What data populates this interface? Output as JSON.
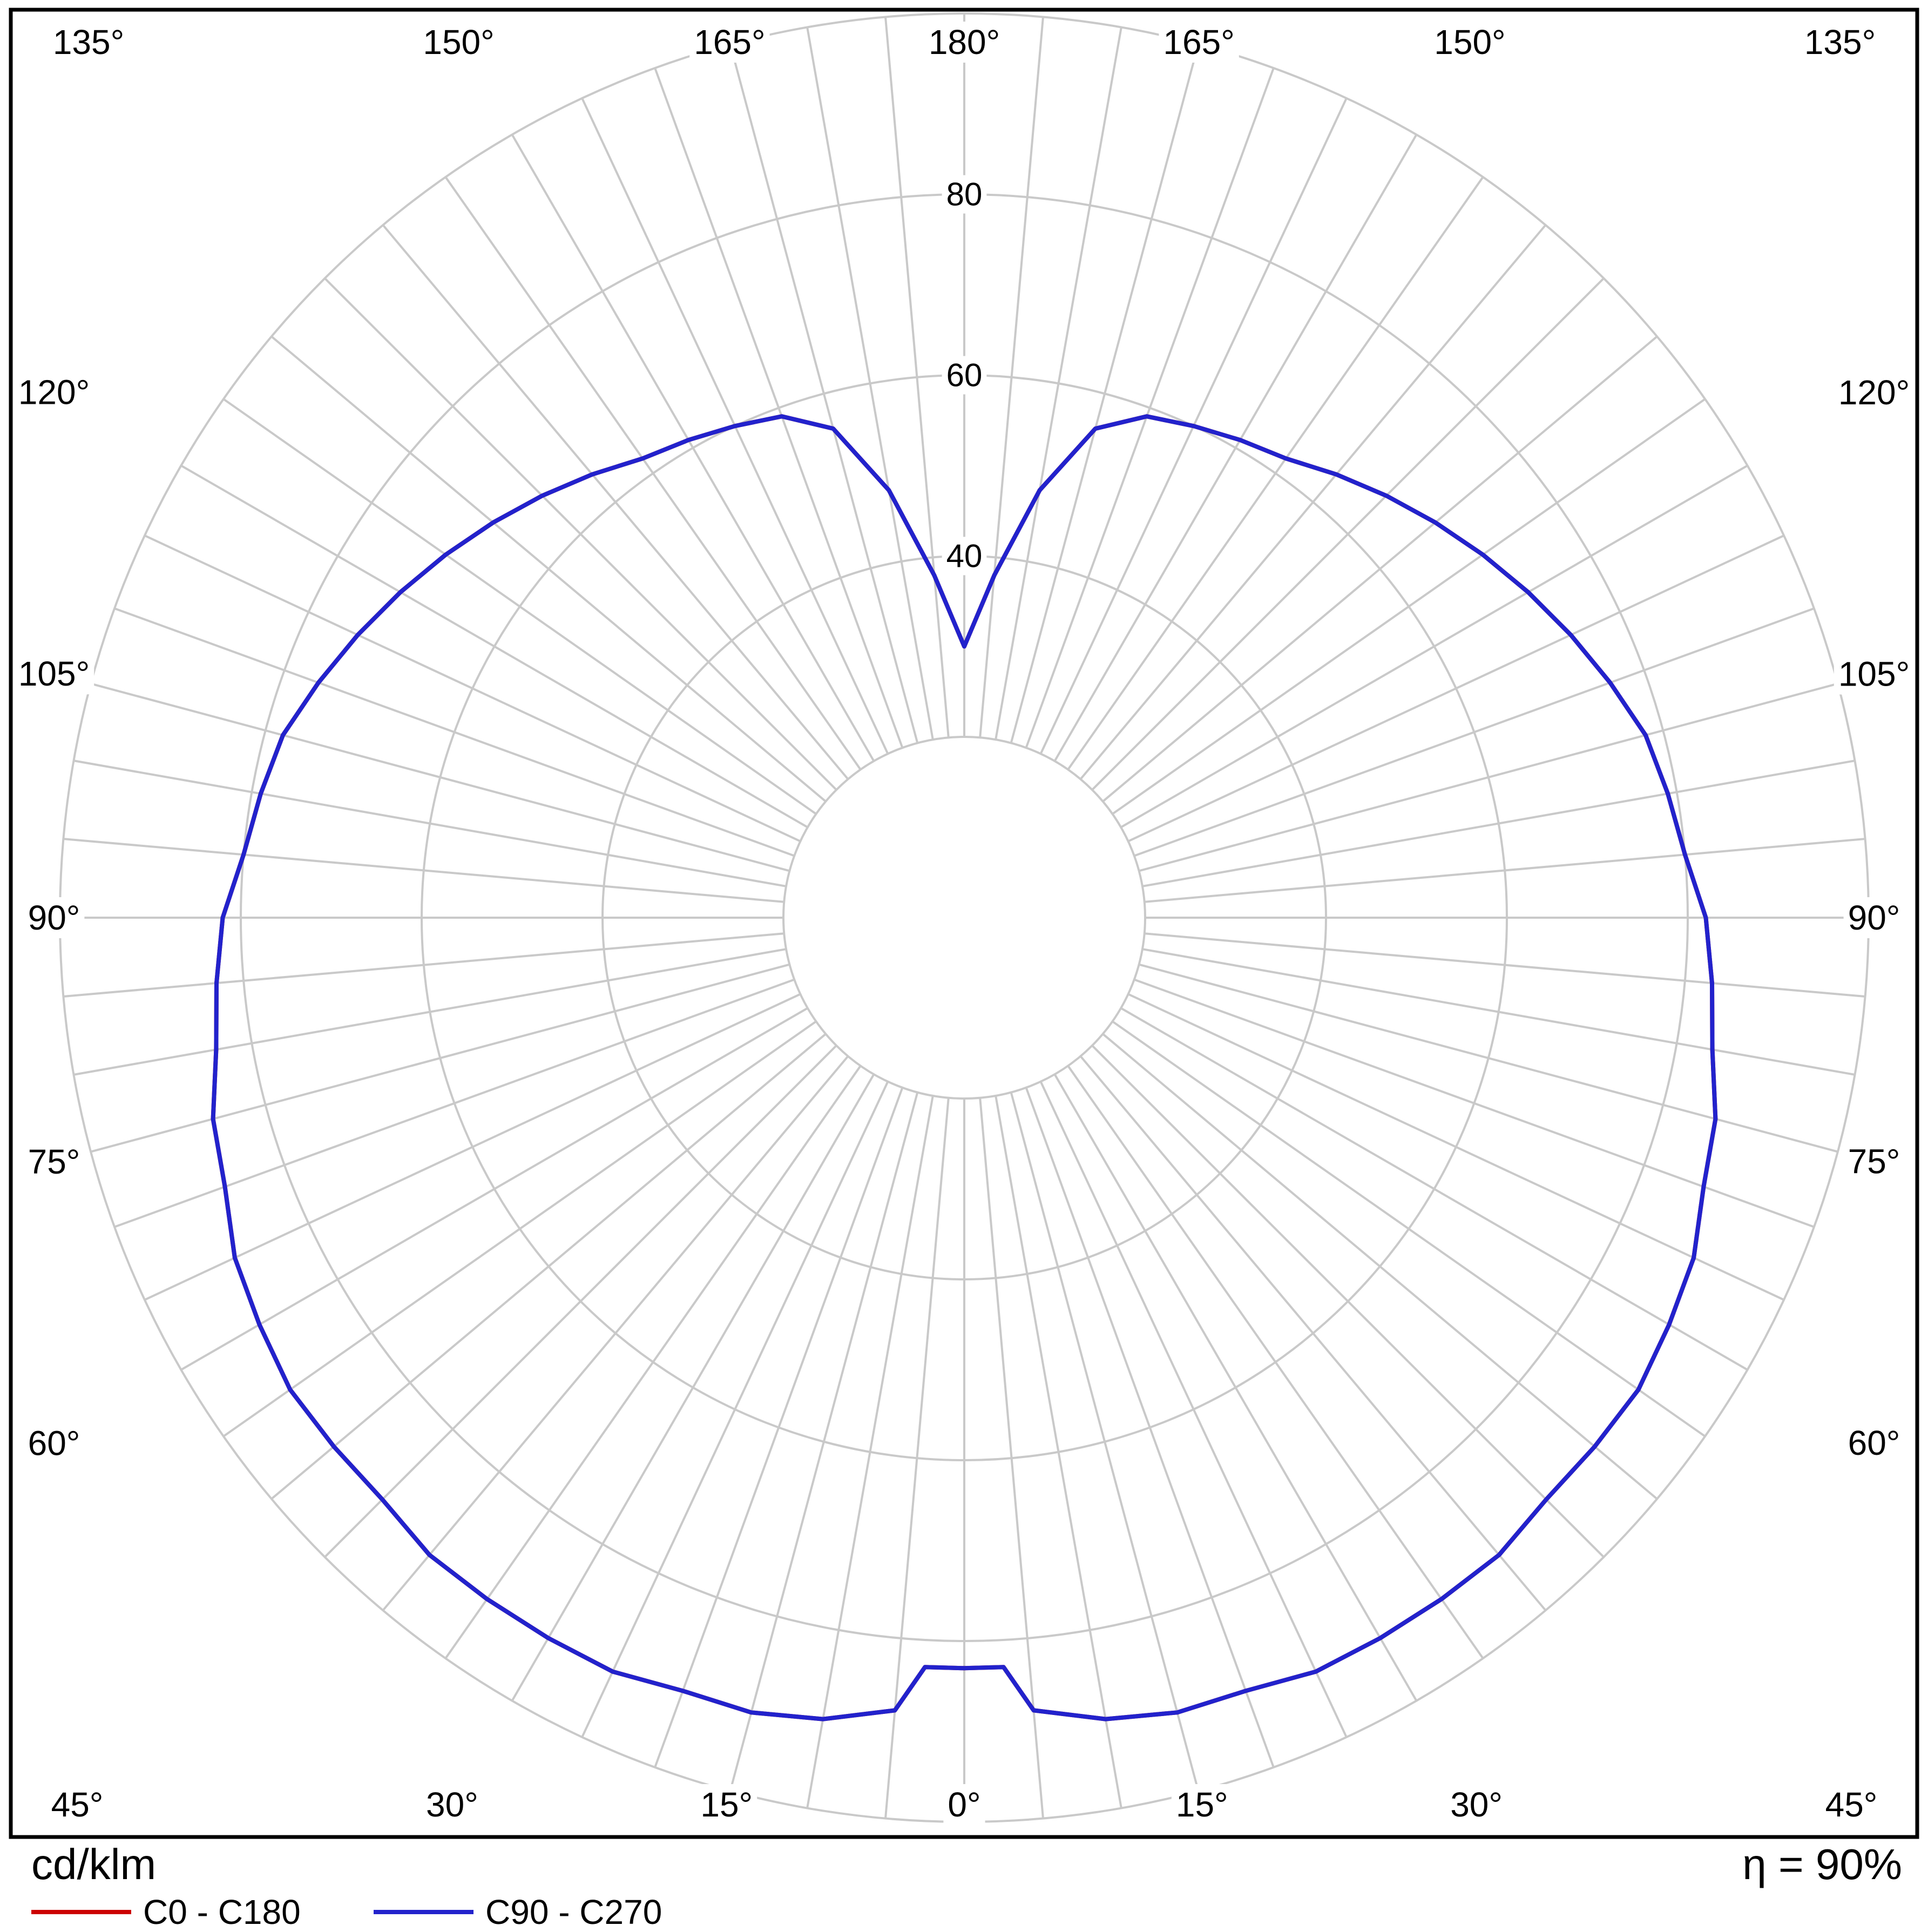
{
  "figure": {
    "unit_label": "cd/klm",
    "efficiency_label": "η = 90%",
    "legend": [
      {
        "label": "C0 - C180",
        "color": "#cc0000"
      },
      {
        "label": "C90 - C270",
        "color": "#2222cc"
      }
    ]
  },
  "chart_data": {
    "type": "line",
    "coordinate_system": "polar",
    "description": "Luminous intensity distribution curve of a luminaire, gamma angle 0° at bottom (nadir) to 180° at top, values in cd/klm, mirrored left/right",
    "radial_unit": "cd/klm",
    "efficiency": "η = 90%",
    "radial_axis": {
      "min": 0,
      "max": 100,
      "grid_step": 20,
      "tick_labels": [
        {
          "value": 40,
          "label": "40"
        },
        {
          "value": 60,
          "label": "60"
        },
        {
          "value": 80,
          "label": "80"
        }
      ]
    },
    "angle_axis": {
      "zero_position": "bottom",
      "major_step_deg": 15,
      "minor_grid_step_deg": 5,
      "labels": [
        {
          "deg": 0,
          "label": "0°"
        },
        {
          "deg": 15,
          "label": "15°"
        },
        {
          "deg": 30,
          "label": "30°"
        },
        {
          "deg": 45,
          "label": "45°"
        },
        {
          "deg": 60,
          "label": "60°"
        },
        {
          "deg": 75,
          "label": "75°"
        },
        {
          "deg": 90,
          "label": "90°"
        },
        {
          "deg": 105,
          "label": "105°"
        },
        {
          "deg": 120,
          "label": "120°"
        },
        {
          "deg": 135,
          "label": "135°"
        },
        {
          "deg": 150,
          "label": "150°"
        },
        {
          "deg": 165,
          "label": "165°"
        },
        {
          "deg": 180,
          "label": "180°"
        }
      ]
    },
    "gamma_deg": [
      0,
      3,
      5,
      10,
      15,
      20,
      25,
      30,
      35,
      40,
      45,
      50,
      55,
      60,
      65,
      70,
      75,
      80,
      85,
      90,
      95,
      100,
      105,
      110,
      115,
      120,
      125,
      130,
      135,
      140,
      145,
      150,
      155,
      160,
      165,
      170,
      175,
      180
    ],
    "series": [
      {
        "name": "C0 - C180",
        "color": "#cc0000",
        "values": [
          83,
          83,
          88,
          90,
          91,
          91,
          92,
          92,
          92,
          92,
          91,
          91,
          91,
          90,
          89,
          87,
          86,
          84,
          83,
          82,
          80,
          79,
          78,
          76,
          74,
          72,
          70,
          68,
          66,
          64,
          62,
          61,
          60,
          59,
          56,
          48,
          38,
          30
        ]
      },
      {
        "name": "C90 - C270",
        "color": "#2222cc",
        "values": [
          83,
          83,
          88,
          90,
          91,
          91,
          92,
          92,
          92,
          92,
          91,
          91,
          91,
          90,
          89,
          87,
          86,
          84,
          83,
          82,
          80,
          79,
          78,
          76,
          74,
          72,
          70,
          68,
          66,
          64,
          62,
          61,
          60,
          59,
          56,
          48,
          38,
          30
        ]
      }
    ],
    "symmetry": "each curve mirrored about the vertical axis",
    "layout": {
      "grid_color": "#c9c9c9",
      "frame_color": "#000000",
      "legend_position": "bottom-left",
      "grid": true
    }
  }
}
